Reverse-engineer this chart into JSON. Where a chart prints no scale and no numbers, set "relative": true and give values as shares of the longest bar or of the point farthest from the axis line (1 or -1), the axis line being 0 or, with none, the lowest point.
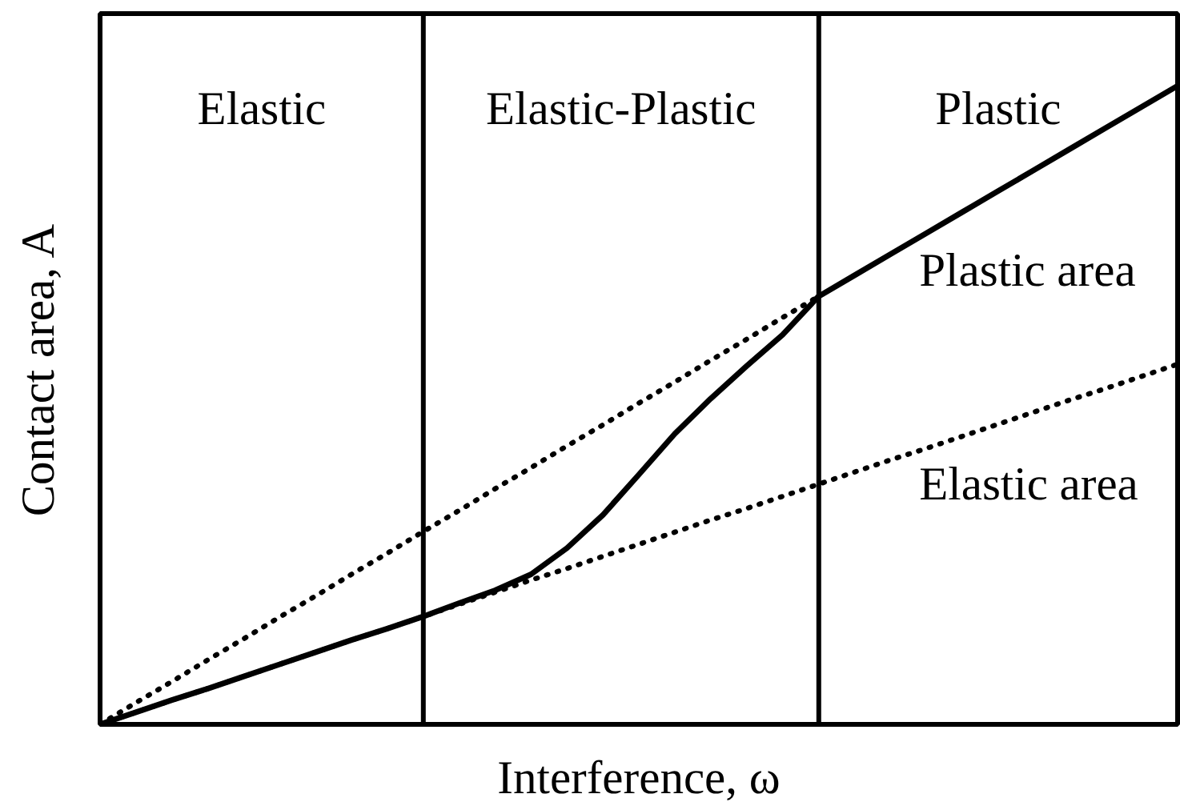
{
  "chart_data": {
    "type": "line",
    "xlabel": "Interference, ω",
    "ylabel": "Contact area, A",
    "relative": true,
    "categories": [
      null,
      null,
      null,
      null,
      null,
      null,
      null,
      null,
      null,
      null,
      null,
      null,
      null,
      null,
      null,
      null,
      null,
      null,
      null,
      null,
      null,
      null,
      null,
      null,
      null,
      null,
      null,
      null,
      null,
      null,
      null
    ],
    "series": [
      {
        "color": "#000000",
        "line_style": "dotted",
        "values": [
          0,
          0.034,
          0.067,
          0.101,
          0.134,
          0.168,
          0.201,
          0.235,
          0.268,
          0.302,
          0.335,
          0.369,
          0.402,
          0.436,
          0.469,
          0.503,
          0.536,
          0.57,
          0.603,
          0.637,
          0.67,
          null,
          null,
          null,
          null,
          null,
          null,
          null,
          null,
          null,
          null
        ]
      },
      {
        "name": "Elastic area",
        "color": "#000000",
        "line_style": "dotted",
        "values": [
          0,
          0.019,
          0.038,
          0.056,
          0.075,
          0.094,
          0.113,
          0.132,
          0.15,
          0.169,
          0.188,
          0.207,
          0.226,
          0.244,
          0.263,
          0.282,
          0.301,
          0.32,
          0.338,
          0.357,
          0.376,
          0.395,
          0.414,
          0.432,
          0.451,
          0.47,
          0.489,
          0.508,
          0.526,
          0.545,
          0.564
        ]
      },
      {
        "color": "#000000",
        "line_style": "solid",
        "values": [
          0,
          0.019,
          0.038,
          0.056,
          0.075,
          0.094,
          0.113,
          0.132,
          0.15,
          0.169,
          0.19,
          0.21,
          0.235,
          0.276,
          0.328,
          0.391,
          0.455,
          0.51,
          0.561,
          0.61,
          0.67,
          0.703,
          0.736,
          0.769,
          0.802,
          0.835,
          0.868,
          0.901,
          0.934,
          0.967,
          1
        ]
      }
    ],
    "annotations": [
      "Elastic",
      "Elastic-Plastic",
      "Plastic",
      "Plastic area"
    ]
  }
}
